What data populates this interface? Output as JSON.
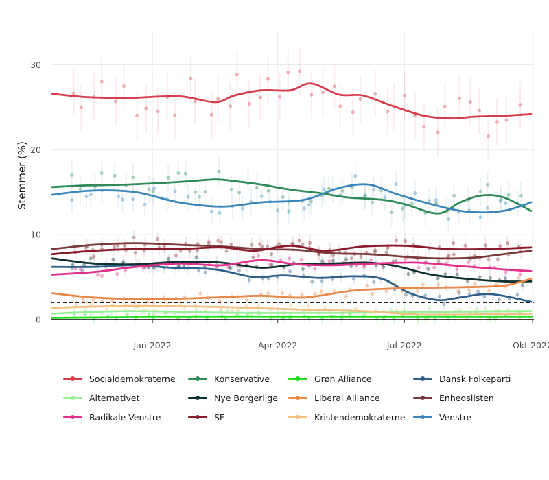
{
  "chart_data": {
    "type": "line",
    "title": "",
    "xlabel": "",
    "ylabel": "Stemmer (%)",
    "x_range": [
      "2021-10-20",
      "2022-10-02"
    ],
    "ylim": [
      0,
      34
    ],
    "x_ticks": [
      {
        "date": "2022-01-01",
        "label": "Jan 2022"
      },
      {
        "date": "2022-04-01",
        "label": "Apr 2022"
      },
      {
        "date": "2022-07-01",
        "label": "Jul 2022"
      },
      {
        "date": "2022-10-01",
        "label": "Okt 2022"
      }
    ],
    "y_ticks": [
      0,
      10,
      20,
      30
    ],
    "threshold": {
      "value": 2,
      "style": "dashed"
    },
    "grid": true,
    "legend_position": "bottom",
    "series": [
      {
        "name": "Socialdemokraterne",
        "color": "#d63d4a",
        "x": [
          "2021-10-21",
          "2021-11-15",
          "2021-12-15",
          "2022-01-20",
          "2022-02-15",
          "2022-03-01",
          "2022-03-20",
          "2022-04-10",
          "2022-04-25",
          "2022-05-15",
          "2022-06-01",
          "2022-06-20",
          "2022-07-15",
          "2022-08-05",
          "2022-08-20",
          "2022-09-10",
          "2022-09-30"
        ],
        "values": [
          26.6,
          26.2,
          26.1,
          26.3,
          25.6,
          26.4,
          27.0,
          27.0,
          27.8,
          26.5,
          26.4,
          25.3,
          24.0,
          23.7,
          23.9,
          24.0,
          24.2
        ]
      },
      {
        "name": "Konservative",
        "color": "#2e8b57",
        "x": [
          "2021-10-21",
          "2021-11-15",
          "2021-12-15",
          "2022-01-20",
          "2022-02-15",
          "2022-03-01",
          "2022-03-20",
          "2022-04-10",
          "2022-05-01",
          "2022-05-20",
          "2022-06-15",
          "2022-07-01",
          "2022-07-25",
          "2022-08-10",
          "2022-08-25",
          "2022-09-10",
          "2022-09-30"
        ],
        "values": [
          15.6,
          15.8,
          15.9,
          16.2,
          16.5,
          16.3,
          15.9,
          15.3,
          14.9,
          14.4,
          14.1,
          13.6,
          12.5,
          13.8,
          14.6,
          14.4,
          12.8
        ]
      },
      {
        "name": "Grøn Alliance",
        "color": "#22dd22",
        "x": [
          "2021-10-21",
          "2022-01-01",
          "2022-04-01",
          "2022-07-01",
          "2022-10-01"
        ],
        "values": [
          0.2,
          0.3,
          0.3,
          0.3,
          0.3
        ]
      },
      {
        "name": "Dansk Folkeparti",
        "color": "#2f5f8a",
        "x": [
          "2021-10-21",
          "2021-11-20",
          "2021-12-20",
          "2022-01-15",
          "2022-02-15",
          "2022-03-15",
          "2022-04-05",
          "2022-05-01",
          "2022-05-25",
          "2022-06-15",
          "2022-07-05",
          "2022-07-25",
          "2022-08-10",
          "2022-09-01",
          "2022-09-30"
        ],
        "values": [
          6.2,
          6.2,
          6.4,
          6.1,
          5.9,
          5.0,
          5.2,
          4.9,
          5.1,
          4.8,
          3.1,
          2.3,
          2.6,
          3.0,
          2.1
        ]
      },
      {
        "name": "Alternativet",
        "color": "#99ee99",
        "x": [
          "2021-10-21",
          "2021-12-15",
          "2022-03-01",
          "2022-05-15",
          "2022-07-15",
          "2022-09-30"
        ],
        "values": [
          0.7,
          1.0,
          0.8,
          0.8,
          0.9,
          1.0
        ]
      },
      {
        "name": "Nye Borgerlige",
        "color": "#0e2f2f",
        "x": [
          "2021-10-21",
          "2021-11-20",
          "2021-12-20",
          "2022-01-20",
          "2022-02-20",
          "2022-03-20",
          "2022-04-15",
          "2022-05-10",
          "2022-06-05",
          "2022-06-25",
          "2022-07-20",
          "2022-08-15",
          "2022-09-10",
          "2022-09-30"
        ],
        "values": [
          7.2,
          6.6,
          6.5,
          6.8,
          6.7,
          6.1,
          6.5,
          6.6,
          6.7,
          6.3,
          5.3,
          4.8,
          4.5,
          4.5
        ]
      },
      {
        "name": "Liberal Alliance",
        "color": "#e8884a",
        "x": [
          "2021-10-21",
          "2021-11-20",
          "2022-01-01",
          "2022-02-15",
          "2022-03-20",
          "2022-04-20",
          "2022-05-25",
          "2022-07-01",
          "2022-08-10",
          "2022-09-10",
          "2022-09-30"
        ],
        "values": [
          3.1,
          2.6,
          2.4,
          2.6,
          2.8,
          2.6,
          3.4,
          3.7,
          3.8,
          4.0,
          4.8
        ]
      },
      {
        "name": "Enhedslisten",
        "color": "#7b3a3a",
        "x": [
          "2021-10-21",
          "2021-11-20",
          "2021-12-20",
          "2022-01-20",
          "2022-02-20",
          "2022-03-20",
          "2022-04-15",
          "2022-05-10",
          "2022-06-05",
          "2022-07-01",
          "2022-07-25",
          "2022-08-20",
          "2022-09-15",
          "2022-09-30"
        ],
        "values": [
          8.3,
          8.8,
          9.0,
          8.8,
          8.6,
          8.3,
          8.2,
          7.8,
          7.7,
          7.4,
          7.2,
          7.3,
          7.8,
          8.1
        ]
      },
      {
        "name": "Radikale Venstre",
        "color": "#e0308a",
        "x": [
          "2021-10-21",
          "2021-11-20",
          "2021-12-20",
          "2022-01-20",
          "2022-02-20",
          "2022-03-20",
          "2022-04-15",
          "2022-05-10",
          "2022-06-10",
          "2022-07-10",
          "2022-08-10",
          "2022-09-10",
          "2022-09-30"
        ],
        "values": [
          5.3,
          5.6,
          6.2,
          6.6,
          6.4,
          7.0,
          6.5,
          6.4,
          6.6,
          6.7,
          6.3,
          5.9,
          5.7
        ]
      },
      {
        "name": "SF",
        "color": "#8b1a2a",
        "x": [
          "2021-10-21",
          "2021-11-20",
          "2021-12-20",
          "2022-01-20",
          "2022-02-20",
          "2022-03-15",
          "2022-04-10",
          "2022-05-05",
          "2022-06-01",
          "2022-07-01",
          "2022-08-01",
          "2022-09-01",
          "2022-09-30"
        ],
        "values": [
          7.7,
          8.1,
          8.3,
          8.3,
          8.5,
          8.1,
          8.7,
          8.1,
          8.6,
          8.7,
          8.3,
          8.3,
          8.5
        ]
      },
      {
        "name": "Kristendemokraterne",
        "color": "#f0c080",
        "x": [
          "2021-10-21",
          "2021-12-15",
          "2022-02-15",
          "2022-04-15",
          "2022-06-01",
          "2022-07-10",
          "2022-08-20",
          "2022-09-30"
        ],
        "values": [
          1.4,
          1.6,
          1.5,
          1.2,
          1.0,
          0.6,
          0.6,
          0.7
        ]
      },
      {
        "name": "Venstre",
        "color": "#3a86bb",
        "x": [
          "2021-10-21",
          "2021-11-20",
          "2021-12-20",
          "2022-01-20",
          "2022-02-20",
          "2022-03-20",
          "2022-04-20",
          "2022-05-15",
          "2022-06-05",
          "2022-06-25",
          "2022-07-20",
          "2022-08-15",
          "2022-09-10",
          "2022-09-30"
        ],
        "values": [
          14.7,
          15.2,
          15.0,
          13.8,
          13.3,
          13.8,
          14.1,
          15.5,
          15.9,
          14.8,
          13.6,
          12.7,
          12.8,
          13.8
        ]
      }
    ]
  },
  "legend_order": [
    "Socialdemokraterne",
    "Konservative",
    "Grøn Alliance",
    "Dansk Folkeparti",
    "Alternativet",
    "Nye Borgerlige",
    "Liberal Alliance",
    "Enhedslisten",
    "Radikale Venstre",
    "SF",
    "Kristendemokraterne",
    "Venstre"
  ]
}
